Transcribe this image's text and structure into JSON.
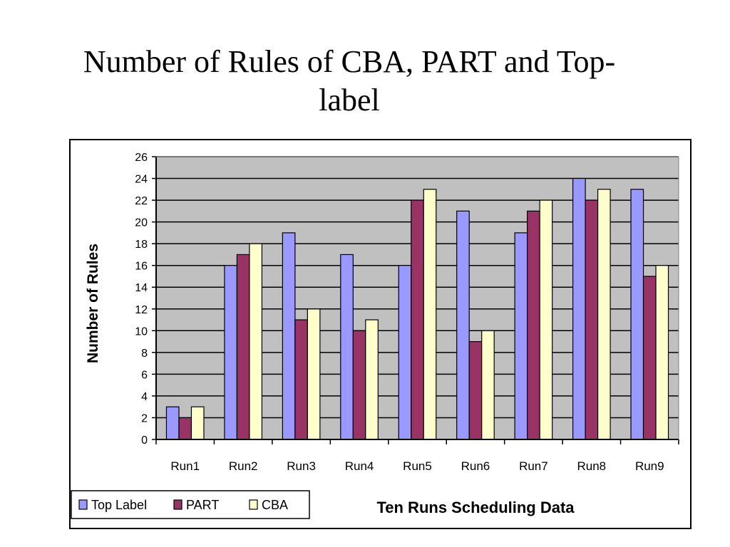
{
  "title": {
    "line1": "Number of Rules  of CBA, PART and Top-",
    "line2": "label"
  },
  "chart_data": {
    "type": "bar",
    "categories": [
      "Run1",
      "Run2",
      "Run3",
      "Run4",
      "Run5",
      "Run6",
      "Run7",
      "Run8",
      "Run9"
    ],
    "series": [
      {
        "name": "Top Label",
        "color": "#9999ff",
        "values": [
          3,
          16,
          19,
          17,
          16,
          21,
          19,
          24,
          23
        ]
      },
      {
        "name": "PART",
        "color": "#993366",
        "values": [
          2,
          17,
          11,
          10,
          22,
          9,
          21,
          22,
          15
        ]
      },
      {
        "name": "CBA",
        "color": "#ffffcc",
        "values": [
          3,
          18,
          12,
          11,
          23,
          10,
          22,
          23,
          16
        ]
      }
    ],
    "xlabel": "Ten Runs Scheduling Data",
    "ylabel": "Number of Rules",
    "ylim": [
      0,
      26
    ],
    "yticks": [
      "0",
      "2",
      "4",
      "6",
      "8",
      "10",
      "12",
      "14",
      "16",
      "18",
      "20",
      "22",
      "24",
      "26"
    ],
    "grid": true,
    "plot_background": "#c0c0c0",
    "legend_placement": "bottom-left"
  }
}
